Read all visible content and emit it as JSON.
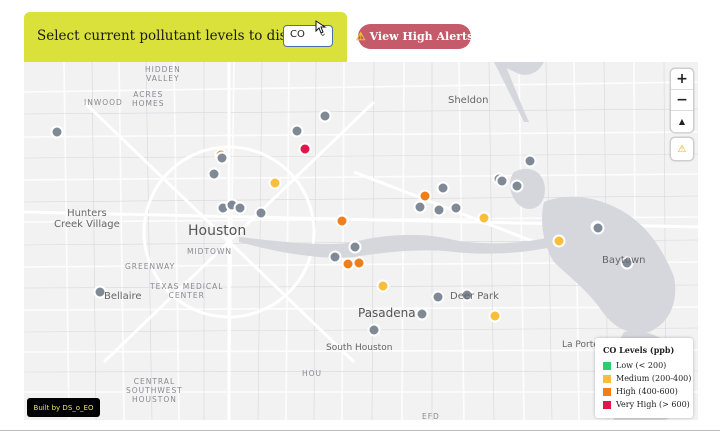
{
  "selector": {
    "label": "Select current pollutant levels to display:",
    "selected": "CO"
  },
  "alerts_button": {
    "icon": "warning-icon",
    "label": "View High Alerts"
  },
  "map": {
    "place_labels": [
      {
        "text": "HIDDEN\nVALLEY",
        "kind": "small"
      },
      {
        "text": "ACRES\nHOMES",
        "kind": "small"
      },
      {
        "text": "INWOOD",
        "kind": "small"
      },
      {
        "text": "Sheldon",
        "kind": "mid"
      },
      {
        "text": "Hunters\nCreek Village",
        "kind": "mid"
      },
      {
        "text": "Houston",
        "kind": "city"
      },
      {
        "text": "MIDTOWN",
        "kind": "small"
      },
      {
        "text": "GREENWAY",
        "kind": "small"
      },
      {
        "text": "TEXAS MEDICAL\nCENTER",
        "kind": "small"
      },
      {
        "text": "Bellaire",
        "kind": "mid"
      },
      {
        "text": "Pasadena",
        "kind": "city"
      },
      {
        "text": "Deer Park",
        "kind": "mid"
      },
      {
        "text": "Baytown",
        "kind": "mid"
      },
      {
        "text": "South Houston",
        "kind": "mid"
      },
      {
        "text": "La Porte",
        "kind": "mid"
      },
      {
        "text": "CENTRAL\nSOUTHWEST\nHOUSTON",
        "kind": "small"
      },
      {
        "text": "HOU",
        "kind": "small"
      },
      {
        "text": "EFD",
        "kind": "small"
      }
    ],
    "zoom_in_label": "+",
    "zoom_out_label": "−",
    "compass_label": "▲",
    "alert_control_icon": "warning-icon",
    "station_levels": {
      "no_data": 33,
      "low": 0,
      "medium": 6,
      "high": 5,
      "very_high": 1
    }
  },
  "legend": {
    "title": "CO Levels (ppb)",
    "items": [
      {
        "label": "Low (< 200)",
        "color": "#2ecc71"
      },
      {
        "label": "Medium (200-400)",
        "color": "#f9bf3b"
      },
      {
        "label": "High (400-600)",
        "color": "#f07f1b"
      },
      {
        "label": "Very High (> 600)",
        "color": "#e0174b"
      }
    ]
  },
  "credit": {
    "label": "Built by DS_o_EO"
  },
  "colors": {
    "no_data": "#7f8a96",
    "medium": "#f9bf3b",
    "high": "#f07f1b",
    "very_high": "#e0174b",
    "water": "#d6d7dc",
    "panel": "#d9e13a",
    "alert_button": "#c45a6a"
  }
}
